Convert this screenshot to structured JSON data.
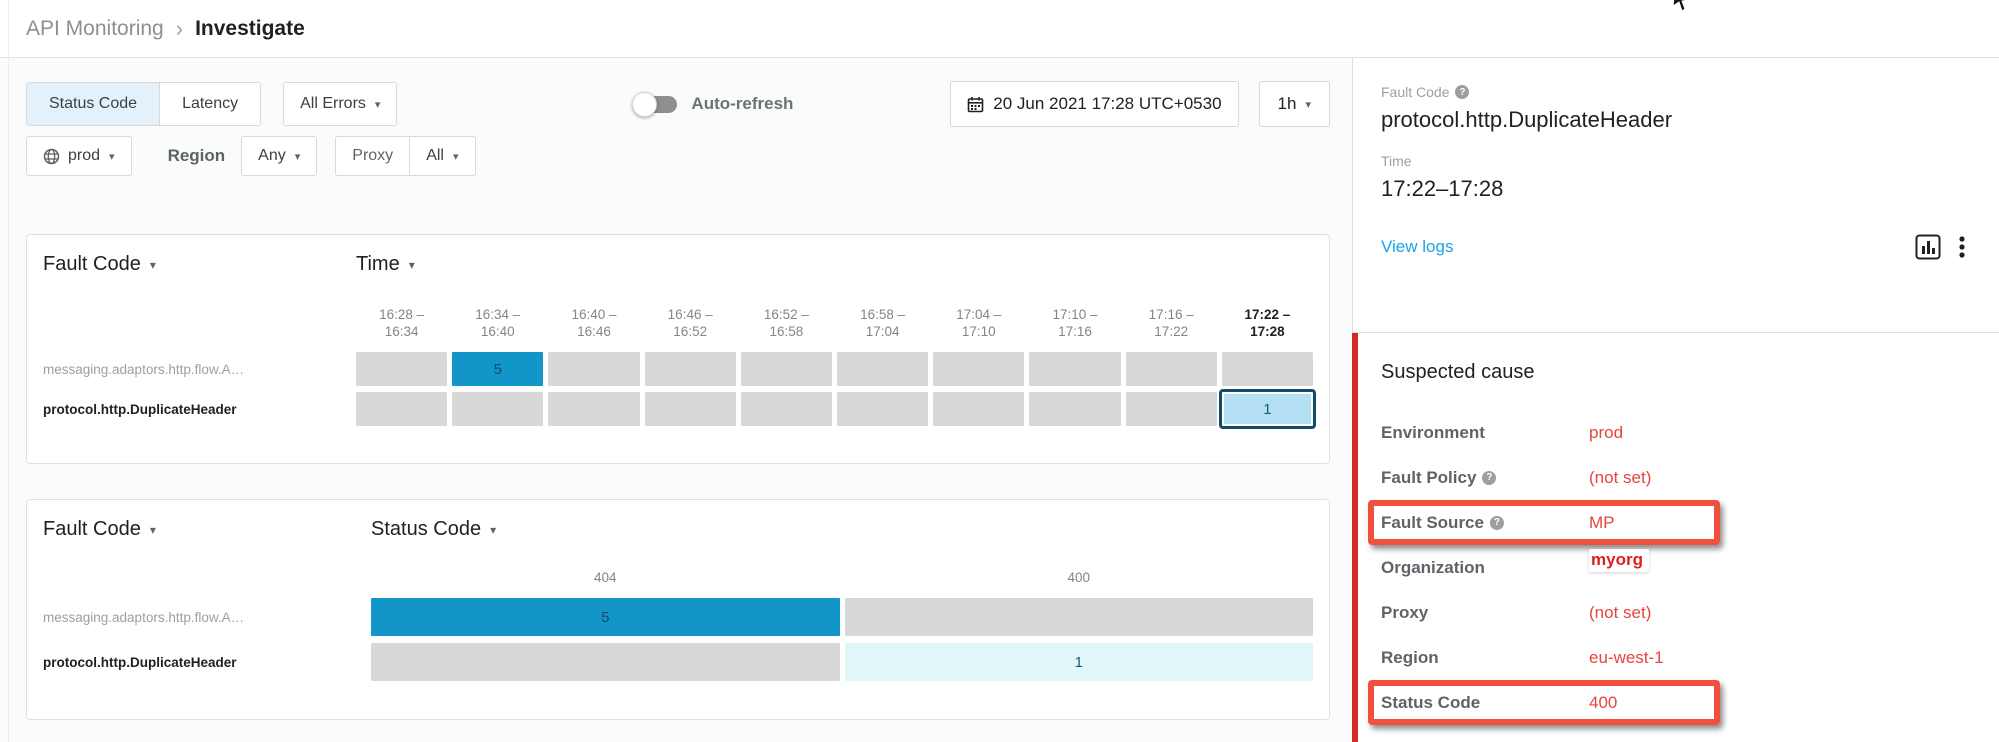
{
  "breadcrumb": {
    "parent": "API Monitoring",
    "separator": "›",
    "current": "Investigate"
  },
  "filters": {
    "metric_toggle": [
      {
        "label": "Status Code",
        "selected": true
      },
      {
        "label": "Latency",
        "selected": false
      }
    ],
    "errors_dropdown": "All Errors",
    "auto_refresh_label": "Auto-refresh",
    "auto_refresh_on": false,
    "datetime": "20 Jun 2021 17:28 UTC+0530",
    "range_dropdown": "1h",
    "environment_dropdown": "prod",
    "region_label": "Region",
    "region_dropdown": "Any",
    "proxy_label": "Proxy",
    "proxy_dropdown": "All"
  },
  "time_matrix": {
    "row_dim": "Fault Code",
    "col_dim": "Time",
    "columns": [
      {
        "top": "16:28 –",
        "bottom": "16:34",
        "bold": false
      },
      {
        "top": "16:34 –",
        "bottom": "16:40",
        "bold": false
      },
      {
        "top": "16:40 –",
        "bottom": "16:46",
        "bold": false
      },
      {
        "top": "16:46 –",
        "bottom": "16:52",
        "bold": false
      },
      {
        "top": "16:52 –",
        "bottom": "16:58",
        "bold": false
      },
      {
        "top": "16:58 –",
        "bottom": "17:04",
        "bold": false
      },
      {
        "top": "17:04 –",
        "bottom": "17:10",
        "bold": false
      },
      {
        "top": "17:10 –",
        "bottom": "17:16",
        "bold": false
      },
      {
        "top": "17:16 –",
        "bottom": "17:22",
        "bold": false
      },
      {
        "top": "17:22 –",
        "bottom": "17:28",
        "bold": true
      }
    ],
    "rows": [
      {
        "label": "messaging.adaptors.http.flow.A…",
        "bold": false,
        "cells": [
          {
            "variant": "gray"
          },
          {
            "value": "5",
            "variant": "blue"
          },
          {
            "variant": "gray"
          },
          {
            "variant": "gray"
          },
          {
            "variant": "gray"
          },
          {
            "variant": "gray"
          },
          {
            "variant": "gray"
          },
          {
            "variant": "gray"
          },
          {
            "variant": "gray"
          },
          {
            "variant": "gray"
          }
        ]
      },
      {
        "label": "protocol.http.DuplicateHeader",
        "bold": true,
        "cells": [
          {
            "variant": "gray"
          },
          {
            "variant": "gray"
          },
          {
            "variant": "gray"
          },
          {
            "variant": "gray"
          },
          {
            "variant": "gray"
          },
          {
            "variant": "gray"
          },
          {
            "variant": "gray"
          },
          {
            "variant": "gray"
          },
          {
            "variant": "gray"
          },
          {
            "value": "1",
            "variant": "selected"
          }
        ]
      }
    ]
  },
  "status_matrix": {
    "row_dim": "Fault Code",
    "col_dim": "Status Code",
    "columns": [
      "404",
      "400"
    ],
    "rows": [
      {
        "label": "messaging.adaptors.http.flow.A…",
        "bold": false,
        "cells": [
          {
            "value": "5",
            "variant": "blue"
          },
          {
            "variant": "gray"
          }
        ]
      },
      {
        "label": "protocol.http.DuplicateHeader",
        "bold": true,
        "cells": [
          {
            "variant": "gray"
          },
          {
            "value": "1",
            "variant": "cyan"
          }
        ]
      }
    ]
  },
  "panel": {
    "fault_code_label": "Fault Code",
    "fault_code_value": "protocol.http.DuplicateHeader",
    "time_label": "Time",
    "time_value": "17:22–17:28",
    "view_logs": "View logs",
    "cause_title": "Suspected cause",
    "cause_rows": [
      {
        "label": "Environment",
        "value": "prod",
        "help": false,
        "highlight": false,
        "annotated": false
      },
      {
        "label": "Fault Policy",
        "value": "(not set)",
        "help": true,
        "highlight": false,
        "annotated": false
      },
      {
        "label": "Fault Source",
        "value": "MP",
        "help": true,
        "highlight": true,
        "annotated": false
      },
      {
        "label": "Organization",
        "value": "myorg",
        "help": false,
        "highlight": false,
        "annotated": true
      },
      {
        "label": "Proxy",
        "value": "(not set)",
        "help": false,
        "highlight": false,
        "annotated": false
      },
      {
        "label": "Region",
        "value": "eu-west-1",
        "help": false,
        "highlight": false,
        "annotated": false
      },
      {
        "label": "Status Code",
        "value": "400",
        "help": false,
        "highlight": true,
        "annotated": false
      }
    ]
  },
  "colors": {
    "heat_blue": "#1295c9",
    "heat_gray": "#d8d8d8",
    "heat_cyan": "#e0f7fa",
    "selected_fill": "#b5dff2",
    "selected_border": "#0f4d68",
    "link_blue": "#1ba3e8",
    "alert_value_red": "#e5453e",
    "annotation_box_red": "#f1503c",
    "cause_bar_red": "#d62a28",
    "segment_selected_bg": "#e4f1fb"
  }
}
